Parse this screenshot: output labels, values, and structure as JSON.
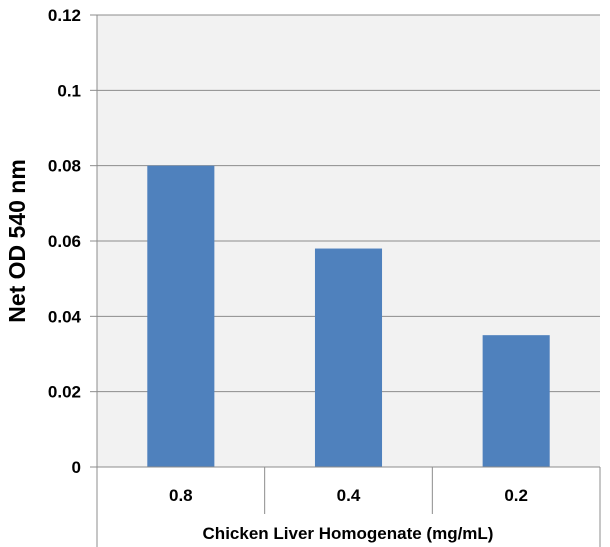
{
  "chart_data": {
    "type": "bar",
    "categories": [
      "0.8",
      "0.4",
      "0.2"
    ],
    "values": [
      0.08,
      0.058,
      0.035
    ],
    "xlabel": "Chicken Liver Homogenate (mg/mL)",
    "ylabel": "Net OD 540 nm",
    "ylim": [
      0,
      0.12
    ],
    "yticks": [
      "0",
      "0.02",
      "0.04",
      "0.06",
      "0.08",
      "0.1",
      "0.12"
    ],
    "grid": true,
    "colors": {
      "bar": "#4f81bd",
      "plot_bg": "#f2f2f2",
      "grid": "#8c8c8c"
    }
  }
}
